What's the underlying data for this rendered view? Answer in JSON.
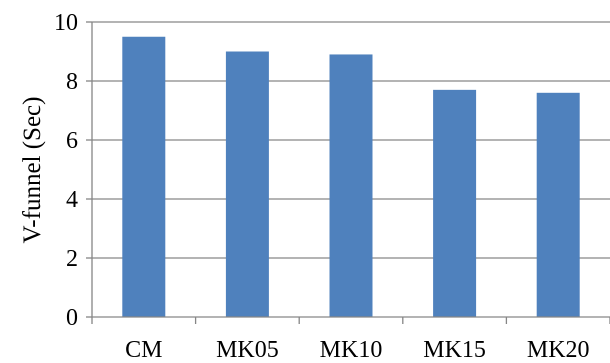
{
  "chart_data": {
    "type": "bar",
    "title": "",
    "xlabel": "",
    "ylabel": "V-funnel (Sec)",
    "categories": [
      "CM",
      "MK05",
      "MK10",
      "MK15",
      "MK20"
    ],
    "values": [
      9.5,
      9.0,
      8.9,
      7.7,
      7.6
    ],
    "ylim": [
      0,
      10
    ],
    "yticks": [
      0,
      2,
      4,
      6,
      8,
      10
    ],
    "grid": true,
    "legend": "none",
    "bar_color": "#4F81BD"
  }
}
